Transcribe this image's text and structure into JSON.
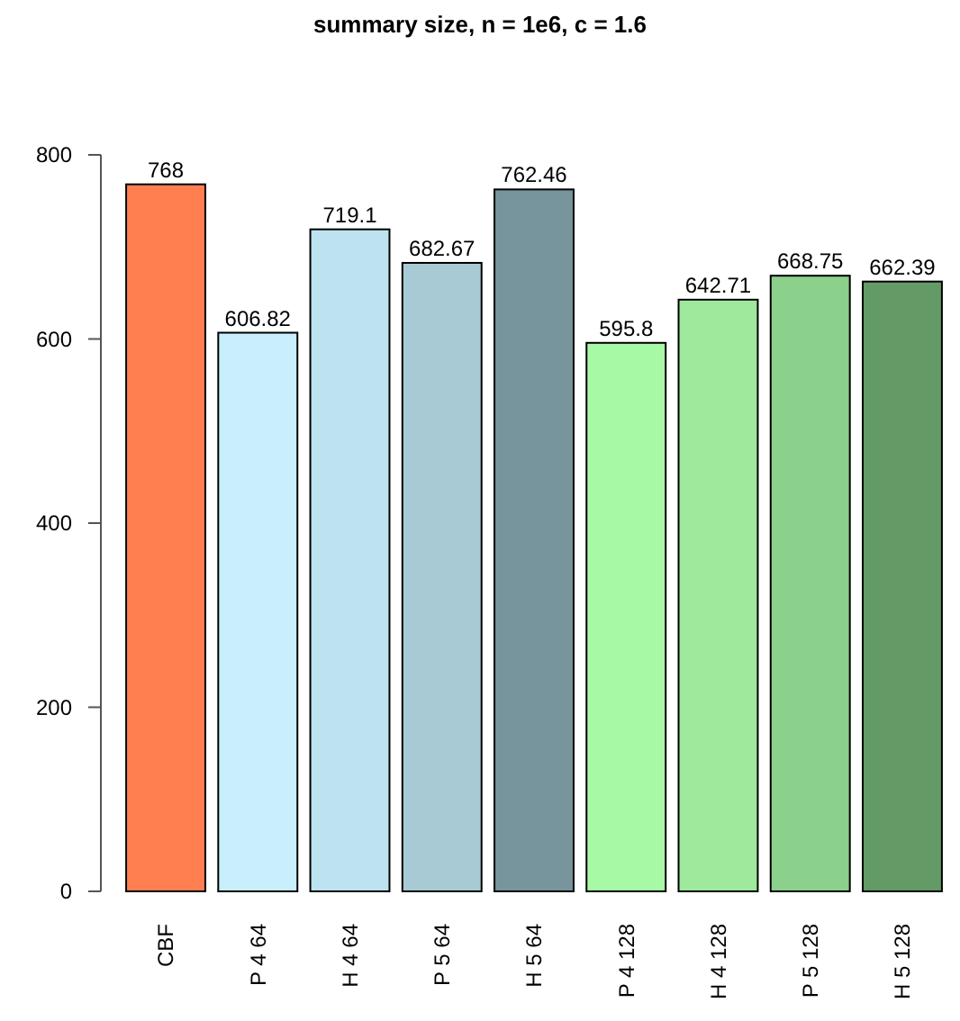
{
  "chart_data": {
    "type": "bar",
    "title": "summary size, n = 1e6, c = 1.6",
    "categories": [
      "CBF",
      "P 4 64",
      "H 4 64",
      "P 5 64",
      "H 5 64",
      "P 4 128",
      "H 4 128",
      "P 5 128",
      "H 5 128"
    ],
    "values": [
      768,
      606.82,
      719.1,
      682.67,
      762.46,
      595.8,
      642.71,
      668.75,
      662.39
    ],
    "colors": [
      "#ff7f50",
      "#c8effb",
      "#bde3f0",
      "#a8cad4",
      "#76959c",
      "#a8f9a6",
      "#9ee99c",
      "#8bd08b",
      "#639a66"
    ],
    "ylim": [
      0,
      800
    ],
    "yticks": [
      0,
      200,
      400,
      600,
      800
    ],
    "data_labels": true
  }
}
